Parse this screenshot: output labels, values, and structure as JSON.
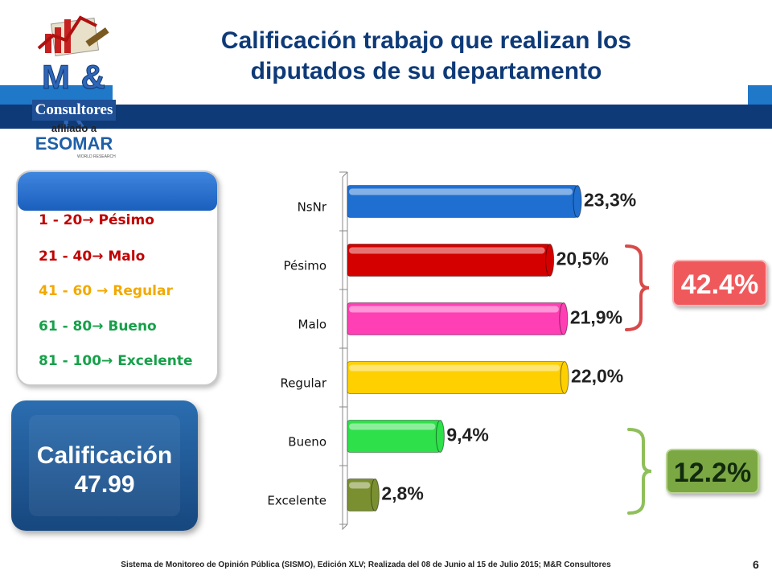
{
  "title": {
    "line1": "Calificación trabajo que realizan los",
    "line2": "diputados de su departamento"
  },
  "logo": {
    "brand": "M & R",
    "name": "Consultores",
    "afiliado": "afiliado a",
    "esomar": "ESOMAR",
    "wr": "WORLD RESEARCH"
  },
  "legend": {
    "items": [
      {
        "text": "1 - 20→  Pésimo",
        "color": "#c00000"
      },
      {
        "text": "21 - 40→   Malo",
        "color": "#c00000"
      },
      {
        "text": "41 - 60 →    Regular",
        "color": "#f2a900"
      },
      {
        "text": "61 - 80→ Bueno",
        "color": "#17a04a"
      },
      {
        "text": "81 - 100→ Excelente",
        "color": "#17a04a"
      }
    ]
  },
  "score": {
    "label": "Calificación",
    "value": "47.99"
  },
  "chart_data": {
    "type": "bar",
    "orientation": "horizontal",
    "categories": [
      "NsNr",
      "Pésimo",
      "Malo",
      "Regular",
      "Bueno",
      "Excelente"
    ],
    "values": [
      23.3,
      20.5,
      21.9,
      22.0,
      9.4,
      2.8
    ],
    "value_labels": [
      "23,3%",
      "20,5%",
      "21,9%",
      "22,0%",
      "9,4%",
      "2,8%"
    ],
    "colors": [
      "#1f6fd0",
      "#d40000",
      "#ff3fb4",
      "#ffd000",
      "#2ee04a",
      "#7a8f30"
    ],
    "xlim": [
      0,
      30
    ],
    "grid": false,
    "legend": "none"
  },
  "groups": {
    "negative": {
      "label": "42.4%",
      "color": "#f0595c"
    },
    "positive": {
      "label": "12.2%",
      "color": "#7ba843"
    }
  },
  "footer": "Sistema de Monitoreo de Opinión Pública (SISMO), Edición XLV; Realizada del 08 de Junio al 15 de Julio 2015; M&R Consultores",
  "page_number": "6"
}
